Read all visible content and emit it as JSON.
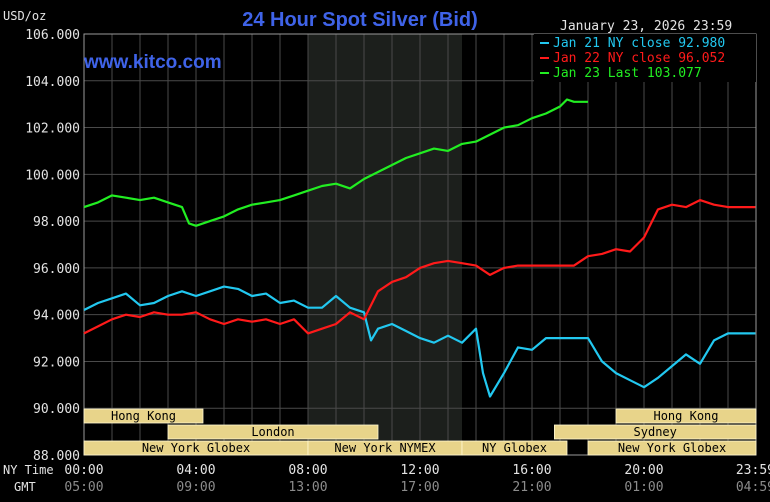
{
  "title": "24 Hour Spot Silver (Bid)",
  "units": "USD/oz",
  "date_label": "January 23, 2026 23:59",
  "watermark": "www.kitco.com",
  "time_row_labels": {
    "ny": "NY Time",
    "gmt": "GMT"
  },
  "colors": {
    "background": "#000000",
    "plot": "#000000",
    "grid": "#4a4a4a",
    "border": "#9a9a9a",
    "title": "#3f63e8",
    "watermark": "#3f63e8",
    "text": "#e4e4e4",
    "session_fill": "#e8d48a",
    "session_text": "#000000",
    "nymex_shade": "#1c1f1c"
  },
  "sessions": [
    {
      "label": "Hong Kong",
      "start": 0.0,
      "end": 4.25,
      "row": 0
    },
    {
      "label": "Hong Kong",
      "start": 19.0,
      "end": 24.0,
      "row": 0
    },
    {
      "label": "London",
      "start": 3.0,
      "end": 10.5,
      "row": 1
    },
    {
      "label": "Sydney",
      "start": 16.8,
      "end": 24.0,
      "row": 1
    },
    {
      "label": "New York Globex",
      "start": 0.0,
      "end": 8.0,
      "row": 2
    },
    {
      "label": "New York NYMEX",
      "start": 8.0,
      "end": 13.5,
      "row": 2
    },
    {
      "label": "NY Globex",
      "start": 13.5,
      "end": 17.25,
      "row": 2
    },
    {
      "label": "New York Globex",
      "start": 18.0,
      "end": 24.0,
      "row": 2
    }
  ],
  "chart_data": {
    "type": "line",
    "title": "24 Hour Spot Silver (Bid)",
    "ylabel": "USD/oz",
    "ylim": [
      88,
      106
    ],
    "xlim": [
      0,
      24
    ],
    "grid": true,
    "legend_position": "top-right",
    "y_ticks": [
      "106.000",
      "104.000",
      "102.000",
      "100.000",
      "98.000",
      "96.000",
      "94.000",
      "92.000",
      "90.000",
      "88.000"
    ],
    "x_ticks_ny": [
      "00:00",
      "04:00",
      "08:00",
      "12:00",
      "16:00",
      "20:00",
      "23:59"
    ],
    "x_ticks_gmt": [
      "05:00",
      "09:00",
      "13:00",
      "17:00",
      "21:00",
      "01:00",
      "04:59"
    ],
    "x_tick_hours": [
      0,
      4,
      8,
      12,
      16,
      20,
      23.98
    ],
    "series": [
      {
        "name": "Jan 21 NY close 92.980",
        "color": "#22c8f0",
        "x": [
          0,
          0.5,
          1,
          1.5,
          2,
          2.5,
          3,
          3.5,
          4,
          4.5,
          5,
          5.5,
          6,
          6.5,
          7,
          7.5,
          8,
          8.5,
          9,
          9.5,
          10,
          10.25,
          10.5,
          11,
          11.5,
          12,
          12.5,
          13,
          13.5,
          14,
          14.25,
          14.5,
          15,
          15.5,
          16,
          16.5,
          17,
          17.5,
          18,
          18.5,
          19,
          19.5,
          20,
          20.5,
          21,
          21.5,
          22,
          22.5,
          23,
          23.98
        ],
        "y": [
          94.2,
          94.5,
          94.7,
          94.9,
          94.4,
          94.5,
          94.8,
          95.0,
          94.8,
          95.0,
          95.2,
          95.1,
          94.8,
          94.9,
          94.5,
          94.6,
          94.3,
          94.3,
          94.8,
          94.3,
          94.1,
          92.9,
          93.4,
          93.6,
          93.3,
          93.0,
          92.8,
          93.1,
          92.8,
          93.4,
          91.5,
          90.5,
          91.5,
          92.6,
          92.5,
          93.0,
          93.0,
          93.0,
          93.0,
          92.0,
          91.5,
          91.2,
          90.9,
          91.3,
          91.8,
          92.3,
          91.9,
          92.9,
          93.2,
          93.2
        ]
      },
      {
        "name": "Jan 22 NY close 96.052",
        "color": "#ff1a1a",
        "x": [
          0,
          0.5,
          1,
          1.5,
          2,
          2.5,
          3,
          3.5,
          4,
          4.5,
          5,
          5.5,
          6,
          6.5,
          7,
          7.5,
          8,
          8.5,
          9,
          9.5,
          10,
          10.5,
          11,
          11.5,
          12,
          12.5,
          13,
          13.5,
          14,
          14.5,
          15,
          15.5,
          16,
          16.5,
          17,
          17.5,
          18,
          18.5,
          19,
          19.5,
          20,
          20.5,
          21,
          21.5,
          22,
          22.5,
          23,
          23.98
        ],
        "y": [
          93.2,
          93.5,
          93.8,
          94.0,
          93.9,
          94.1,
          94.0,
          94.0,
          94.1,
          93.8,
          93.6,
          93.8,
          93.7,
          93.8,
          93.6,
          93.8,
          93.2,
          93.4,
          93.6,
          94.1,
          93.8,
          95.0,
          95.4,
          95.6,
          96.0,
          96.2,
          96.3,
          96.2,
          96.1,
          95.7,
          96.0,
          96.1,
          96.1,
          96.1,
          96.1,
          96.1,
          96.5,
          96.6,
          96.8,
          96.7,
          97.3,
          98.5,
          98.7,
          98.6,
          98.9,
          98.7,
          98.6,
          98.6
        ]
      },
      {
        "name": "Jan 23 Last 103.077",
        "color": "#22ee22",
        "x": [
          0,
          0.5,
          1,
          1.5,
          2,
          2.5,
          3,
          3.5,
          3.75,
          4,
          4.5,
          5,
          5.5,
          6,
          6.5,
          7,
          7.5,
          8,
          8.5,
          9,
          9.5,
          10,
          10.5,
          11,
          11.5,
          12,
          12.5,
          13,
          13.5,
          14,
          14.5,
          15,
          15.5,
          16,
          16.5,
          17,
          17.25,
          17.5,
          18.0
        ],
        "y": [
          98.6,
          98.8,
          99.1,
          99.0,
          98.9,
          99.0,
          98.8,
          98.6,
          97.9,
          97.8,
          98.0,
          98.2,
          98.5,
          98.7,
          98.8,
          98.9,
          99.1,
          99.3,
          99.5,
          99.6,
          99.4,
          99.8,
          100.1,
          100.4,
          100.7,
          100.9,
          101.1,
          101.0,
          101.3,
          101.4,
          101.7,
          102.0,
          102.1,
          102.4,
          102.6,
          102.9,
          103.2,
          103.1,
          103.1
        ]
      }
    ]
  }
}
